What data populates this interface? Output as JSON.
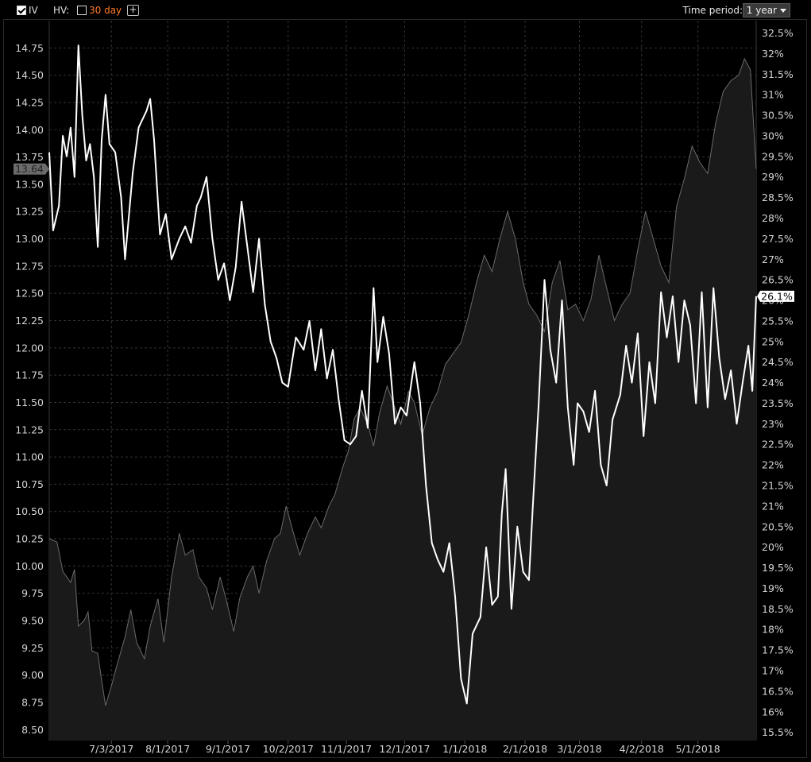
{
  "toolbar": {
    "iv_label": "IV",
    "iv_checked": true,
    "hv_label": "HV:",
    "hv_checked": false,
    "hv_period": "30 day",
    "add_symbol": "+",
    "time_period_label": "Time period:",
    "time_period_value": "1 year"
  },
  "colors": {
    "background": "#000000",
    "iv_line": "#ffffff",
    "price_area_fill": "#1a1a1a",
    "price_area_stroke": "#6a6a6a",
    "grid": "#333333",
    "hv_period_text": "#ff7a2a"
  },
  "chart_data": {
    "type": "line",
    "grid": true,
    "x_axis": {
      "type": "date",
      "range": [
        "2017-06-01",
        "2018-05-31"
      ],
      "tick_labels": [
        "7/3/2017",
        "8/1/2017",
        "9/1/2017",
        "10/2/2017",
        "11/1/2017",
        "12/1/2017",
        "1/1/2018",
        "2/1/2018",
        "3/1/2018",
        "4/2/2018",
        "5/1/2018"
      ],
      "ticks": [
        "2017-07-03",
        "2017-08-01",
        "2017-09-01",
        "2017-10-02",
        "2017-11-01",
        "2017-12-01",
        "2018-01-01",
        "2018-02-01",
        "2018-03-01",
        "2018-04-02",
        "2018-05-01"
      ]
    },
    "y_left": {
      "range": [
        8.4,
        15.0
      ],
      "tick_labels": [
        "14.75",
        "14.50",
        "14.25",
        "14.00",
        "13.75",
        "13.50",
        "13.25",
        "13.00",
        "12.75",
        "12.50",
        "12.25",
        "12.00",
        "11.75",
        "11.50",
        "11.25",
        "11.00",
        "10.75",
        "10.50",
        "10.25",
        "10.00",
        "9.75",
        "9.50",
        "9.25",
        "9.00",
        "8.75",
        "8.50"
      ],
      "ticks": [
        14.75,
        14.5,
        14.25,
        14.0,
        13.75,
        13.5,
        13.25,
        13.0,
        12.75,
        12.5,
        12.25,
        12.0,
        11.75,
        11.5,
        11.25,
        11.0,
        10.75,
        10.5,
        10.25,
        10.0,
        9.75,
        9.5,
        9.25,
        9.0,
        8.75,
        8.5
      ],
      "current_label": "13.64",
      "current_value": 13.64
    },
    "y_right": {
      "range": [
        15.3,
        32.8
      ],
      "unit": "%",
      "tick_labels": [
        "32.5%",
        "32%",
        "31.5%",
        "31%",
        "30.5%",
        "30%",
        "29.5%",
        "29%",
        "28.5%",
        "28%",
        "27.5%",
        "27%",
        "26.5%",
        "26%",
        "25.5%",
        "25%",
        "24.5%",
        "24%",
        "23.5%",
        "23%",
        "22.5%",
        "22%",
        "21.5%",
        "21%",
        "20.5%",
        "20%",
        "19.5%",
        "19%",
        "18.5%",
        "18%",
        "17.5%",
        "17%",
        "16.5%",
        "16%",
        "15.5%"
      ],
      "ticks": [
        32.5,
        32,
        31.5,
        31,
        30.5,
        30,
        29.5,
        29,
        28.5,
        28,
        27.5,
        27,
        26.5,
        26,
        25.5,
        25,
        24.5,
        24,
        23.5,
        23,
        22.5,
        22,
        21.5,
        21,
        20.5,
        20,
        19.5,
        19,
        18.5,
        18,
        17.5,
        17,
        16.5,
        16,
        15.5
      ],
      "current_label": "26.1%",
      "current_value": 26.1
    },
    "series": [
      {
        "axis": "left",
        "style": "area",
        "points": [
          [
            "2017-06-01",
            10.25
          ],
          [
            "2017-06-05",
            10.22
          ],
          [
            "2017-06-08",
            9.95
          ],
          [
            "2017-06-12",
            9.85
          ],
          [
            "2017-06-14",
            9.97
          ],
          [
            "2017-06-16",
            9.45
          ],
          [
            "2017-06-19",
            9.5
          ],
          [
            "2017-06-21",
            9.58
          ],
          [
            "2017-06-23",
            9.22
          ],
          [
            "2017-06-26",
            9.2
          ],
          [
            "2017-06-28",
            8.95
          ],
          [
            "2017-06-30",
            8.72
          ],
          [
            "2017-07-03",
            8.9
          ],
          [
            "2017-07-06",
            9.1
          ],
          [
            "2017-07-10",
            9.35
          ],
          [
            "2017-07-13",
            9.6
          ],
          [
            "2017-07-16",
            9.3
          ],
          [
            "2017-07-20",
            9.15
          ],
          [
            "2017-07-23",
            9.45
          ],
          [
            "2017-07-27",
            9.7
          ],
          [
            "2017-07-30",
            9.3
          ],
          [
            "2017-08-03",
            9.9
          ],
          [
            "2017-08-07",
            10.3
          ],
          [
            "2017-08-10",
            10.1
          ],
          [
            "2017-08-14",
            10.15
          ],
          [
            "2017-08-17",
            9.9
          ],
          [
            "2017-08-21",
            9.8
          ],
          [
            "2017-08-24",
            9.6
          ],
          [
            "2017-08-28",
            9.9
          ],
          [
            "2017-08-31",
            9.7
          ],
          [
            "2017-09-04",
            9.4
          ],
          [
            "2017-09-07",
            9.7
          ],
          [
            "2017-09-11",
            9.9
          ],
          [
            "2017-09-14",
            10.0
          ],
          [
            "2017-09-17",
            9.75
          ],
          [
            "2017-09-21",
            10.05
          ],
          [
            "2017-09-25",
            10.25
          ],
          [
            "2017-09-28",
            10.3
          ],
          [
            "2017-10-01",
            10.55
          ],
          [
            "2017-10-04",
            10.35
          ],
          [
            "2017-10-08",
            10.1
          ],
          [
            "2017-10-12",
            10.3
          ],
          [
            "2017-10-16",
            10.45
          ],
          [
            "2017-10-19",
            10.35
          ],
          [
            "2017-10-23",
            10.55
          ],
          [
            "2017-10-26",
            10.65
          ],
          [
            "2017-10-30",
            10.9
          ],
          [
            "2017-11-02",
            11.05
          ],
          [
            "2017-11-05",
            11.35
          ],
          [
            "2017-11-08",
            11.45
          ],
          [
            "2017-11-12",
            11.3
          ],
          [
            "2017-11-15",
            11.1
          ],
          [
            "2017-11-18",
            11.4
          ],
          [
            "2017-11-22",
            11.65
          ],
          [
            "2017-11-26",
            11.45
          ],
          [
            "2017-11-29",
            11.3
          ],
          [
            "2017-12-03",
            11.6
          ],
          [
            "2017-12-06",
            11.5
          ],
          [
            "2017-12-10",
            11.2
          ],
          [
            "2017-12-14",
            11.45
          ],
          [
            "2017-12-18",
            11.6
          ],
          [
            "2017-12-22",
            11.85
          ],
          [
            "2017-12-26",
            11.95
          ],
          [
            "2017-12-30",
            12.05
          ],
          [
            "2018-01-03",
            12.3
          ],
          [
            "2018-01-07",
            12.6
          ],
          [
            "2018-01-11",
            12.85
          ],
          [
            "2018-01-15",
            12.7
          ],
          [
            "2018-01-19",
            13.0
          ],
          [
            "2018-01-23",
            13.25
          ],
          [
            "2018-01-27",
            13.0
          ],
          [
            "2018-01-31",
            12.6
          ],
          [
            "2018-02-03",
            12.4
          ],
          [
            "2018-02-07",
            12.3
          ],
          [
            "2018-02-11",
            12.15
          ],
          [
            "2018-02-15",
            12.6
          ],
          [
            "2018-02-19",
            12.8
          ],
          [
            "2018-02-23",
            12.35
          ],
          [
            "2018-02-27",
            12.4
          ],
          [
            "2018-03-03",
            12.25
          ],
          [
            "2018-03-07",
            12.45
          ],
          [
            "2018-03-11",
            12.85
          ],
          [
            "2018-03-15",
            12.55
          ],
          [
            "2018-03-19",
            12.25
          ],
          [
            "2018-03-23",
            12.4
          ],
          [
            "2018-03-27",
            12.5
          ],
          [
            "2018-03-31",
            12.9
          ],
          [
            "2018-04-04",
            13.25
          ],
          [
            "2018-04-08",
            13.0
          ],
          [
            "2018-04-12",
            12.75
          ],
          [
            "2018-04-16",
            12.6
          ],
          [
            "2018-04-20",
            13.3
          ],
          [
            "2018-04-24",
            13.55
          ],
          [
            "2018-04-28",
            13.85
          ],
          [
            "2018-05-02",
            13.7
          ],
          [
            "2018-05-06",
            13.6
          ],
          [
            "2018-05-10",
            14.05
          ],
          [
            "2018-05-14",
            14.35
          ],
          [
            "2018-05-18",
            14.45
          ],
          [
            "2018-05-22",
            14.5
          ],
          [
            "2018-05-25",
            14.65
          ],
          [
            "2018-05-28",
            14.55
          ],
          [
            "2018-05-31",
            13.64
          ]
        ]
      },
      {
        "axis": "right",
        "style": "line",
        "points": [
          [
            "2017-06-01",
            29.6
          ],
          [
            "2017-06-03",
            27.7
          ],
          [
            "2017-06-06",
            28.3
          ],
          [
            "2017-06-08",
            30.0
          ],
          [
            "2017-06-10",
            29.5
          ],
          [
            "2017-06-12",
            30.2
          ],
          [
            "2017-06-14",
            29.0
          ],
          [
            "2017-06-16",
            32.2
          ],
          [
            "2017-06-18",
            30.5
          ],
          [
            "2017-06-20",
            29.4
          ],
          [
            "2017-06-22",
            29.8
          ],
          [
            "2017-06-24",
            29.0
          ],
          [
            "2017-06-26",
            27.3
          ],
          [
            "2017-06-28",
            29.9
          ],
          [
            "2017-06-30",
            31.0
          ],
          [
            "2017-07-02",
            29.8
          ],
          [
            "2017-07-05",
            29.6
          ],
          [
            "2017-07-08",
            28.5
          ],
          [
            "2017-07-10",
            27.0
          ],
          [
            "2017-07-14",
            29.1
          ],
          [
            "2017-07-17",
            30.2
          ],
          [
            "2017-07-21",
            30.6
          ],
          [
            "2017-07-23",
            30.9
          ],
          [
            "2017-07-25",
            29.9
          ],
          [
            "2017-07-28",
            27.6
          ],
          [
            "2017-07-31",
            28.1
          ],
          [
            "2017-08-03",
            27.0
          ],
          [
            "2017-08-07",
            27.5
          ],
          [
            "2017-08-10",
            27.8
          ],
          [
            "2017-08-13",
            27.4
          ],
          [
            "2017-08-16",
            28.3
          ],
          [
            "2017-08-18",
            28.5
          ],
          [
            "2017-08-21",
            29.0
          ],
          [
            "2017-08-24",
            27.5
          ],
          [
            "2017-08-27",
            26.5
          ],
          [
            "2017-08-30",
            26.9
          ],
          [
            "2017-09-02",
            26.0
          ],
          [
            "2017-09-05",
            26.8
          ],
          [
            "2017-09-08",
            28.4
          ],
          [
            "2017-09-11",
            27.3
          ],
          [
            "2017-09-14",
            26.2
          ],
          [
            "2017-09-17",
            27.5
          ],
          [
            "2017-09-20",
            25.9
          ],
          [
            "2017-09-23",
            25.0
          ],
          [
            "2017-09-26",
            24.6
          ],
          [
            "2017-09-29",
            24.0
          ],
          [
            "2017-10-02",
            23.9
          ],
          [
            "2017-10-06",
            25.1
          ],
          [
            "2017-10-10",
            24.8
          ],
          [
            "2017-10-13",
            25.5
          ],
          [
            "2017-10-16",
            24.3
          ],
          [
            "2017-10-19",
            25.3
          ],
          [
            "2017-10-22",
            24.1
          ],
          [
            "2017-10-25",
            24.8
          ],
          [
            "2017-10-28",
            23.6
          ],
          [
            "2017-10-31",
            22.6
          ],
          [
            "2017-11-03",
            22.5
          ],
          [
            "2017-11-06",
            22.7
          ],
          [
            "2017-11-09",
            23.8
          ],
          [
            "2017-11-12",
            22.9
          ],
          [
            "2017-11-15",
            26.3
          ],
          [
            "2017-11-17",
            24.5
          ],
          [
            "2017-11-20",
            25.6
          ],
          [
            "2017-11-23",
            24.7
          ],
          [
            "2017-11-26",
            23.0
          ],
          [
            "2017-11-29",
            23.4
          ],
          [
            "2017-12-02",
            23.2
          ],
          [
            "2017-12-06",
            24.5
          ],
          [
            "2017-12-09",
            23.5
          ],
          [
            "2017-12-12",
            21.5
          ],
          [
            "2017-12-15",
            20.1
          ],
          [
            "2017-12-18",
            19.7
          ],
          [
            "2017-12-21",
            19.4
          ],
          [
            "2017-12-24",
            20.1
          ],
          [
            "2017-12-27",
            18.8
          ],
          [
            "2017-12-30",
            16.8
          ],
          [
            "2018-01-02",
            16.2
          ],
          [
            "2018-01-05",
            17.9
          ],
          [
            "2018-01-09",
            18.3
          ],
          [
            "2018-01-12",
            20.0
          ],
          [
            "2018-01-15",
            18.6
          ],
          [
            "2018-01-18",
            18.8
          ],
          [
            "2018-01-20",
            20.8
          ],
          [
            "2018-01-22",
            21.9
          ],
          [
            "2018-01-25",
            18.5
          ],
          [
            "2018-01-28",
            20.5
          ],
          [
            "2018-01-31",
            19.4
          ],
          [
            "2018-02-03",
            19.2
          ],
          [
            "2018-02-05",
            21.0
          ],
          [
            "2018-02-08",
            23.5
          ],
          [
            "2018-02-11",
            26.5
          ],
          [
            "2018-02-14",
            24.8
          ],
          [
            "2018-02-17",
            24.0
          ],
          [
            "2018-02-20",
            26.0
          ],
          [
            "2018-02-23",
            23.4
          ],
          [
            "2018-02-26",
            22.0
          ],
          [
            "2018-02-28",
            23.5
          ],
          [
            "2018-03-03",
            23.3
          ],
          [
            "2018-03-06",
            22.8
          ],
          [
            "2018-03-09",
            23.8
          ],
          [
            "2018-03-12",
            22.0
          ],
          [
            "2018-03-15",
            21.5
          ],
          [
            "2018-03-18",
            23.1
          ],
          [
            "2018-03-22",
            23.7
          ],
          [
            "2018-03-25",
            24.9
          ],
          [
            "2018-03-28",
            24.0
          ],
          [
            "2018-03-31",
            25.2
          ],
          [
            "2018-04-03",
            22.7
          ],
          [
            "2018-04-06",
            24.5
          ],
          [
            "2018-04-09",
            23.5
          ],
          [
            "2018-04-12",
            26.2
          ],
          [
            "2018-04-15",
            25.1
          ],
          [
            "2018-04-18",
            26.1
          ],
          [
            "2018-04-21",
            24.5
          ],
          [
            "2018-04-24",
            26.0
          ],
          [
            "2018-04-27",
            25.4
          ],
          [
            "2018-04-30",
            23.5
          ],
          [
            "2018-05-03",
            26.2
          ],
          [
            "2018-05-06",
            23.4
          ],
          [
            "2018-05-09",
            26.3
          ],
          [
            "2018-05-12",
            24.6
          ],
          [
            "2018-05-15",
            23.6
          ],
          [
            "2018-05-18",
            24.3
          ],
          [
            "2018-05-21",
            23.0
          ],
          [
            "2018-05-24",
            24.0
          ],
          [
            "2018-05-27",
            24.9
          ],
          [
            "2018-05-29",
            23.8
          ],
          [
            "2018-05-31",
            26.1
          ]
        ]
      }
    ]
  }
}
